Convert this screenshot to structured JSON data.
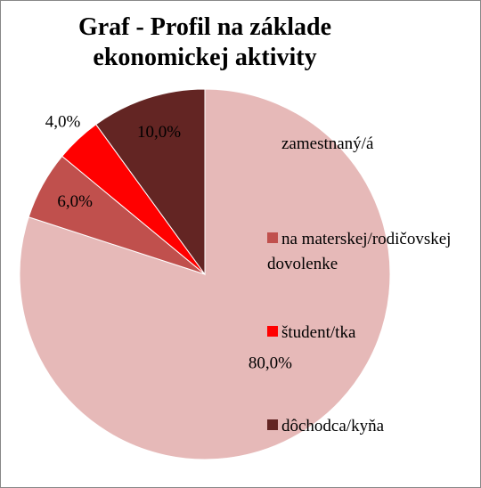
{
  "chart_data": {
    "type": "pie",
    "title": "Graf - Profil na základe ekonomickej aktivity",
    "categories": [
      "zamestnaný/á",
      "na materskej/rodičovskej dovolenke",
      "študent/tka",
      "dôchodca/kyňa"
    ],
    "values": [
      80,
      6,
      4,
      10
    ],
    "value_labels": [
      "80,0%",
      "6,0%",
      "4,0%",
      "10,0%"
    ],
    "colors": [
      "#e6b9b8",
      "#c0504d",
      "#ff0000",
      "#632523"
    ],
    "legend": "right"
  }
}
